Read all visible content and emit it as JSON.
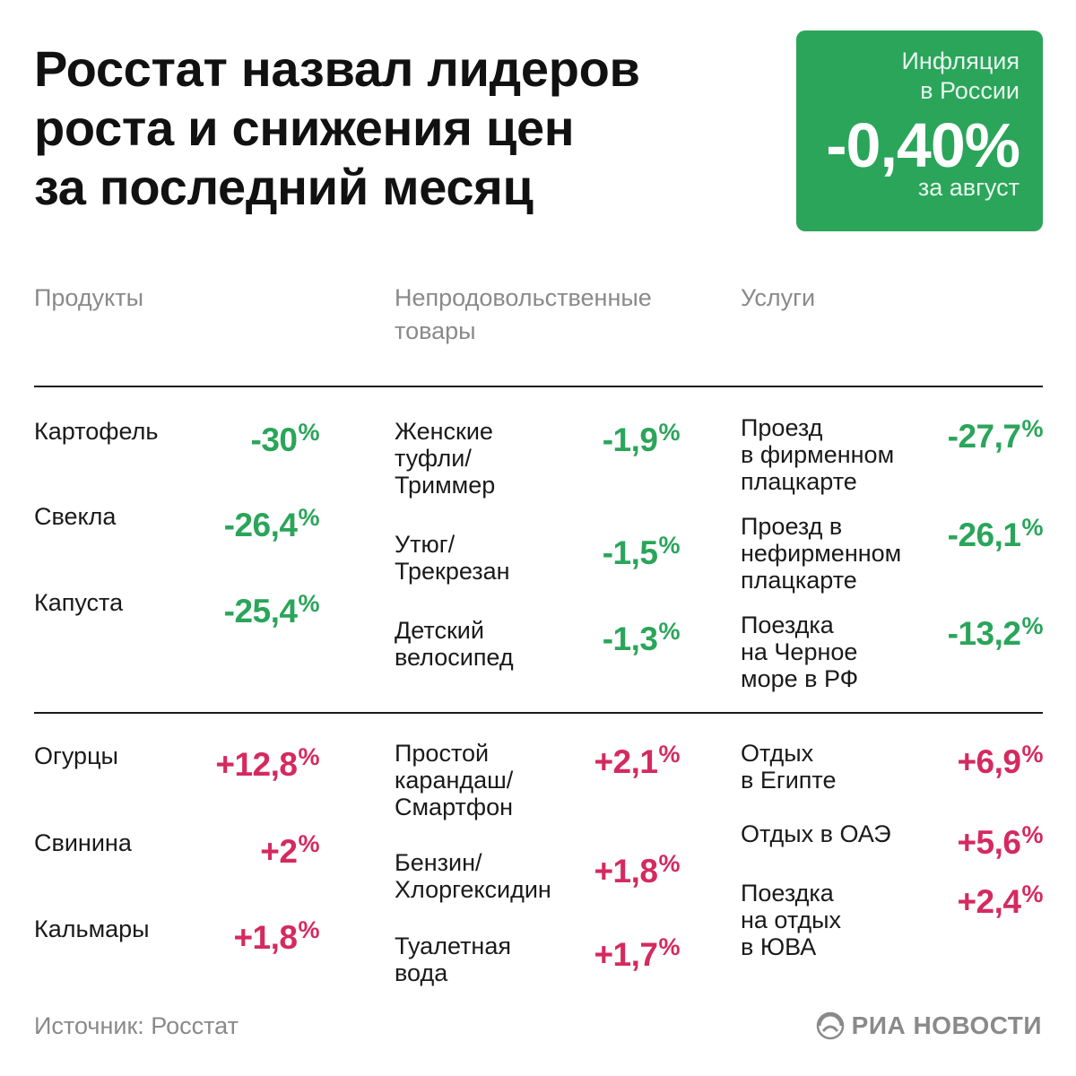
{
  "title": "Росстат назвал лидеров\nроста и снижения цен\nза последний месяц",
  "colors": {
    "green": "#2aa55a",
    "red": "#d42a5f",
    "badge_bg": "#2aa55a"
  },
  "badge": {
    "label": "Инфляция\nв России",
    "value": "-0,40%",
    "period": "за август"
  },
  "columns": [
    {
      "heading": "Продукты"
    },
    {
      "heading": "Непродовольственные\nтовары"
    },
    {
      "heading": "Услуги"
    }
  ],
  "decreases": [
    [
      {
        "label": "Картофель",
        "value": "-30"
      },
      {
        "label": "Свекла",
        "value": "-26,4"
      },
      {
        "label": "Капуста",
        "value": "-25,4"
      }
    ],
    [
      {
        "label": "Женские\nтуфли/\nТриммер",
        "value": "-1,9"
      },
      {
        "label": "Утюг/\nТрекрезан",
        "value": "-1,5"
      },
      {
        "label": "Детский\nвелосипед",
        "value": "-1,3"
      }
    ],
    [
      {
        "label": "Проезд\nв фирменном\nплацкарте",
        "value": "-27,7"
      },
      {
        "label": "Проезд в\nнефирменном\nплацкарте",
        "value": "-26,1"
      },
      {
        "label": "Поездка\nна Черное\nморе в РФ",
        "value": "-13,2"
      }
    ]
  ],
  "increases": [
    [
      {
        "label": "Огурцы",
        "value": "+12,8"
      },
      {
        "label": "Свинина",
        "value": "+2"
      },
      {
        "label": "Кальмары",
        "value": "+1,8"
      }
    ],
    [
      {
        "label": "Простой\nкарандаш/\nСмартфон",
        "value": "+2,1"
      },
      {
        "label": "Бензин/\nХлоргексидин",
        "value": "+1,8"
      },
      {
        "label": "Туалетная\nвода",
        "value": "+1,7"
      }
    ],
    [
      {
        "label": "Отдых\nв Египте",
        "value": "+6,9"
      },
      {
        "label": "Отдых в ОАЭ",
        "value": "+5,6"
      },
      {
        "label": "Поездка\nна отдых\nв ЮВА",
        "value": "+2,4"
      }
    ]
  ],
  "percent_sign": "%",
  "footer": {
    "source": "Источник: Росстат",
    "brand": "РИА НОВОСТИ"
  }
}
